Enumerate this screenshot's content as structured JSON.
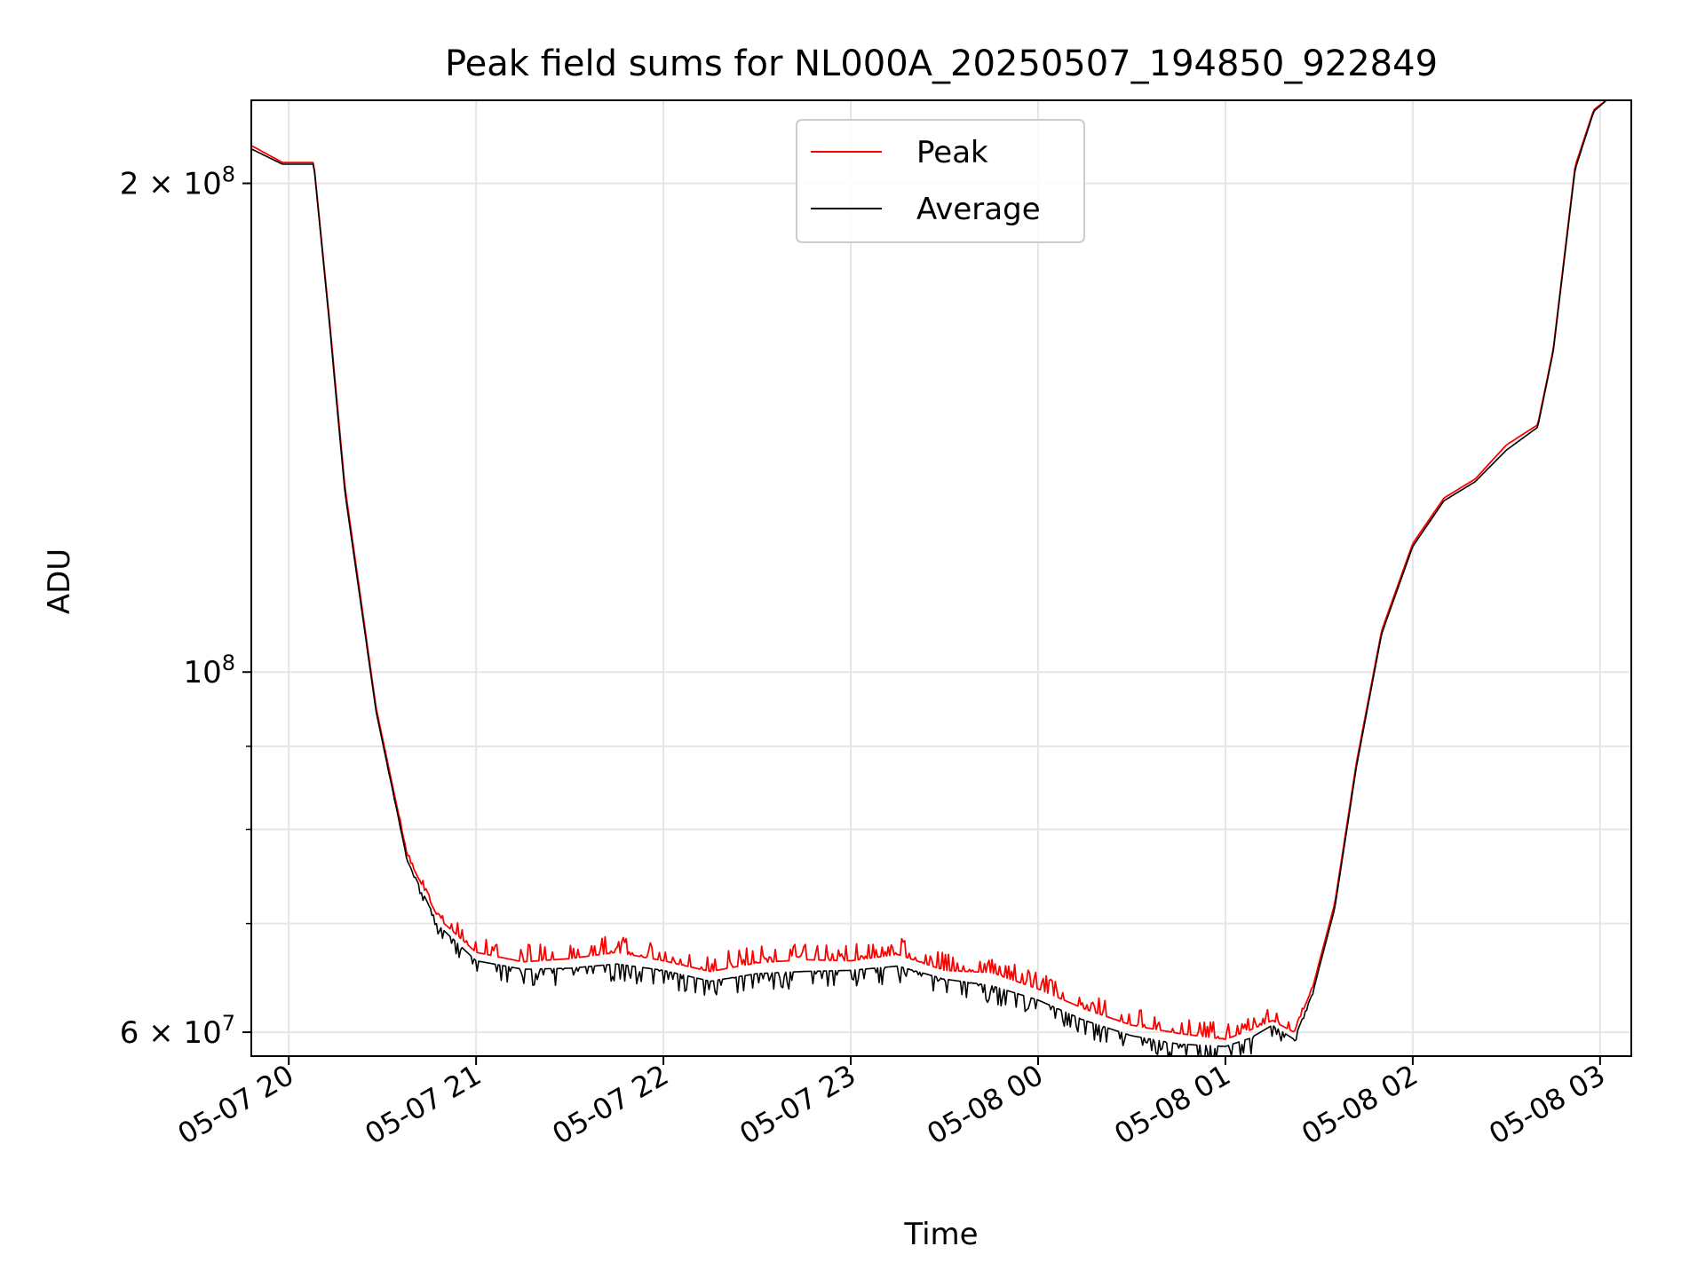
{
  "chart_data": {
    "type": "line",
    "title": "Peak field sums for NL000A_20250507_194850_922849",
    "xlabel": "Time",
    "ylabel": "ADU",
    "yscale": "log",
    "xlim": [
      "2025-05-07 19:48",
      "2025-05-08 03:10"
    ],
    "ylim": [
      58000000,
      225000000
    ],
    "x_ticks": [
      "2025-05-07 20:00",
      "2025-05-07 21:00",
      "2025-05-07 22:00",
      "2025-05-07 23:00",
      "2025-05-08 00:00",
      "2025-05-08 01:00",
      "2025-05-08 02:00",
      "2025-05-08 03:00"
    ],
    "x_tick_labels": [
      "05-07 20",
      "05-07 21",
      "05-07 22",
      "05-07 23",
      "05-08 00",
      "05-08 01",
      "05-08 02",
      "05-08 03"
    ],
    "y_ticks": [
      {
        "value": 200000000,
        "base": "2 × 10",
        "exp": "8"
      },
      {
        "value": 100000000,
        "base": "10",
        "exp": "8"
      },
      {
        "value": 60000000,
        "base": "6 × 10",
        "exp": "7"
      }
    ],
    "y_minor_ticks": [
      70000000,
      80000000,
      90000000
    ],
    "grid": true,
    "legend_position": "top-center",
    "x": [
      "2025-05-07 19:48",
      "2025-05-07 19:58",
      "2025-05-07 20:08",
      "2025-05-07 20:13",
      "2025-05-07 20:18",
      "2025-05-07 20:28",
      "2025-05-07 20:38",
      "2025-05-07 20:48",
      "2025-05-07 21:00",
      "2025-05-07 21:15",
      "2025-05-07 21:30",
      "2025-05-07 21:45",
      "2025-05-07 22:00",
      "2025-05-07 22:15",
      "2025-05-07 22:30",
      "2025-05-07 22:45",
      "2025-05-07 23:00",
      "2025-05-07 23:15",
      "2025-05-07 23:30",
      "2025-05-07 23:45",
      "2025-05-08 00:00",
      "2025-05-08 00:15",
      "2025-05-08 00:30",
      "2025-05-08 00:45",
      "2025-05-08 01:00",
      "2025-05-08 01:08",
      "2025-05-08 01:15",
      "2025-05-08 01:22",
      "2025-05-08 01:28",
      "2025-05-08 01:35",
      "2025-05-08 01:42",
      "2025-05-08 01:50",
      "2025-05-08 02:00",
      "2025-05-08 02:10",
      "2025-05-08 02:20",
      "2025-05-08 02:30",
      "2025-05-08 02:40",
      "2025-05-08 02:45",
      "2025-05-08 02:52",
      "2025-05-08 02:58",
      "2025-05-08 03:02"
    ],
    "series": [
      {
        "name": "Peak",
        "color": "#ff0000",
        "noise": "up",
        "values": [
          211000000,
          206000000,
          206000000,
          165000000,
          130000000,
          95000000,
          77000000,
          70500000,
          67200000,
          66300000,
          66600000,
          67200000,
          66400000,
          65400000,
          66200000,
          66500000,
          66400000,
          67000000,
          65500000,
          65300000,
          63800000,
          62000000,
          60600000,
          59900000,
          59400000,
          60200000,
          61000000,
          60000000,
          64000000,
          72000000,
          88000000,
          106000000,
          120000000,
          128000000,
          131500000,
          138000000,
          142000000,
          158000000,
          205000000,
          222000000,
          225000000
        ]
      },
      {
        "name": "Average",
        "color": "#000000",
        "noise": "down",
        "values": [
          210000000,
          205500000,
          205500000,
          164000000,
          129000000,
          94500000,
          76500000,
          69800000,
          66400000,
          65600000,
          65700000,
          66100000,
          65500000,
          64500000,
          65200000,
          65400000,
          65500000,
          65900000,
          64700000,
          64100000,
          62800000,
          61000000,
          59700000,
          59000000,
          58800000,
          59500000,
          60600000,
          59400000,
          63500000,
          71500000,
          87500000,
          105500000,
          119500000,
          127500000,
          131000000,
          137000000,
          141500000,
          157500000,
          204000000,
          221500000,
          225000000
        ]
      }
    ]
  }
}
